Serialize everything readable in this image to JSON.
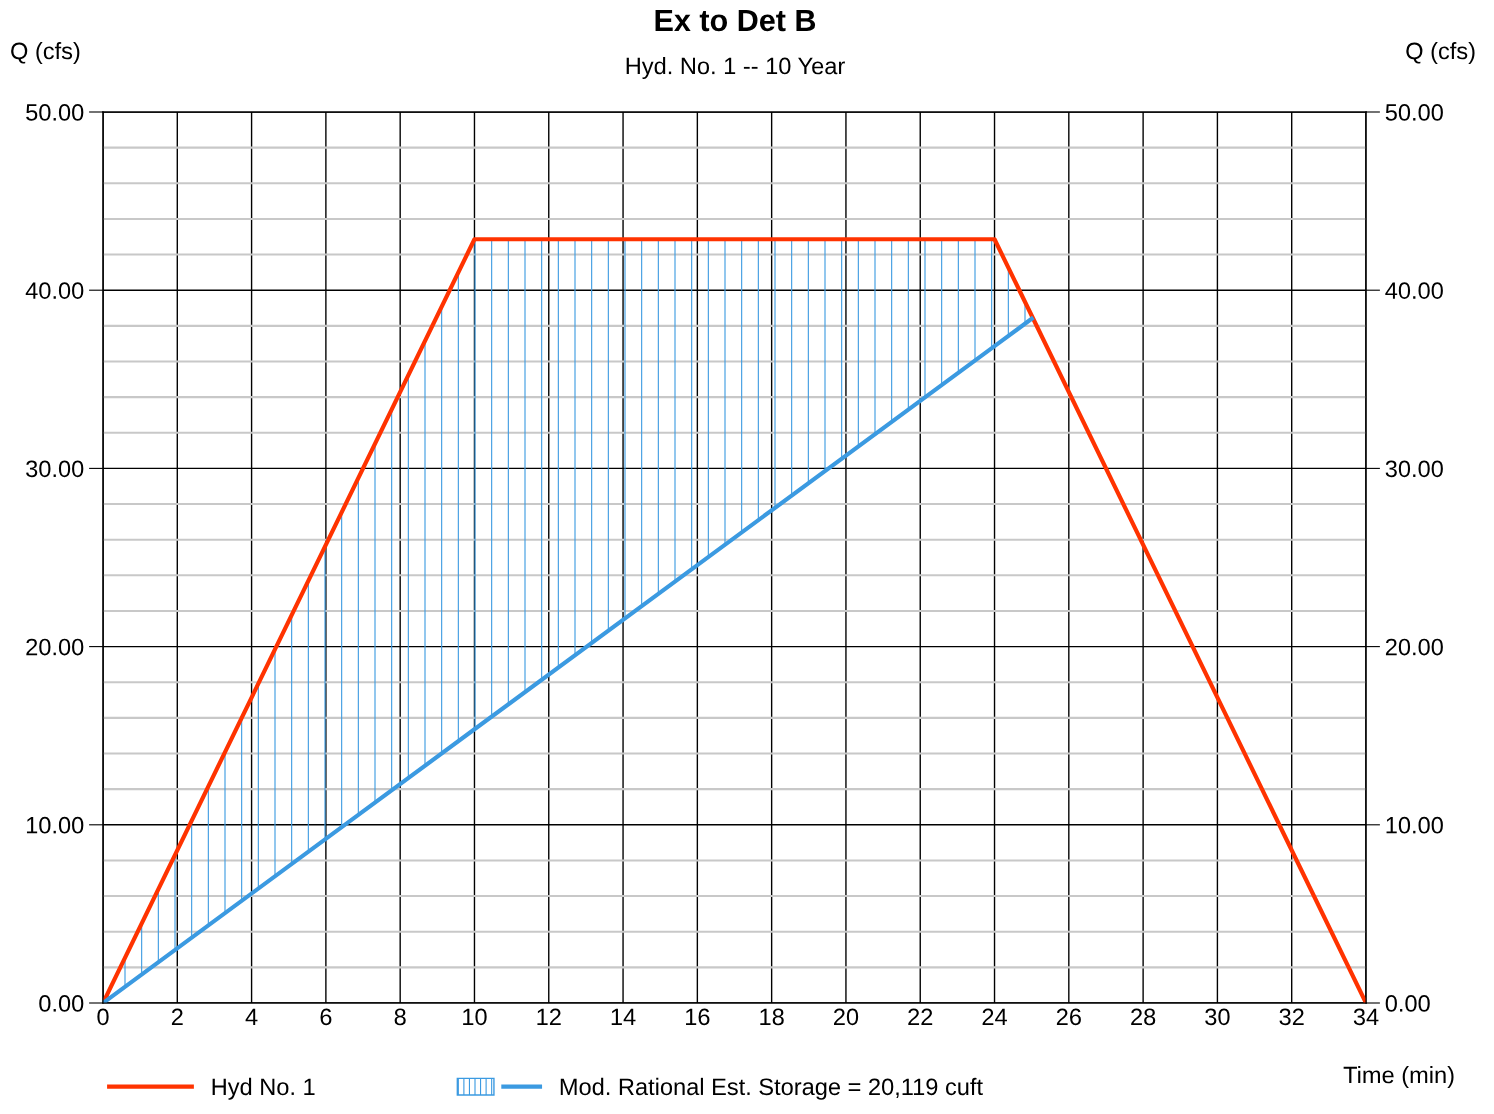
{
  "chart_data": {
    "type": "line",
    "title": "Ex to Det B",
    "subtitle": "Hyd. No. 1 -- 10 Year",
    "xlabel": "Time (min)",
    "ylabel": "Q (cfs)",
    "y2label": "Q (cfs)",
    "series": [
      {
        "name": "Hyd No. 1",
        "color": "#ff3300",
        "x": [
          0,
          10,
          24,
          34
        ],
        "values": [
          0,
          42.86,
          42.86,
          0
        ]
      },
      {
        "name": "Mod. Rational Est. Storage = 20,119 cuft",
        "color": "#3b9ae1",
        "x": [
          0,
          10,
          24,
          25
        ],
        "values": [
          0,
          15.36,
          36.86,
          38.4
        ],
        "lower": [
          0,
          15.36,
          36.86,
          38.4
        ],
        "upper": [
          0,
          42.86,
          42.86,
          38.4
        ]
      }
    ],
    "xlim": [
      0,
      34
    ],
    "xticks": [
      0,
      2,
      4,
      6,
      8,
      10,
      12,
      14,
      16,
      18,
      20,
      22,
      24,
      26,
      28,
      30,
      32,
      34
    ],
    "ylim": [
      0,
      50
    ],
    "yticks": [
      {
        "value": 0,
        "label": "0.00"
      },
      {
        "value": 2,
        "label": null
      },
      {
        "value": 4,
        "label": null
      },
      {
        "value": 6,
        "label": null
      },
      {
        "value": 8,
        "label": null
      },
      {
        "value": 10,
        "label": "10.00"
      },
      {
        "value": 12,
        "label": null
      },
      {
        "value": 14,
        "label": null
      },
      {
        "value": 16,
        "label": null
      },
      {
        "value": 18,
        "label": null
      },
      {
        "value": 20,
        "label": "20.00"
      },
      {
        "value": 22,
        "label": null
      },
      {
        "value": 24,
        "label": null
      },
      {
        "value": 26,
        "label": null
      },
      {
        "value": 28,
        "label": null
      },
      {
        "value": 30,
        "label": "30.00"
      },
      {
        "value": 32,
        "label": null
      },
      {
        "value": 34,
        "label": null
      },
      {
        "value": 36,
        "label": null
      },
      {
        "value": 38,
        "label": null
      },
      {
        "value": 40,
        "label": "40.00"
      },
      {
        "value": 42,
        "label": null
      },
      {
        "value": 44,
        "label": null
      },
      {
        "value": 46,
        "label": null
      },
      {
        "value": 48,
        "label": null
      },
      {
        "value": 50,
        "label": "50.00"
      }
    ],
    "y2lim": [
      0,
      50
    ],
    "y2ticks": [
      {
        "value": 0,
        "label": "0.00"
      },
      {
        "value": 10,
        "label": "10.00"
      },
      {
        "value": 20,
        "label": "20.00"
      },
      {
        "value": 30,
        "label": "30.00"
      },
      {
        "value": 40,
        "label": "40.00"
      },
      {
        "value": 50,
        "label": "50.00"
      }
    ],
    "grid": true,
    "legend": "bottom",
    "marker": "none",
    "line_style": "solid"
  }
}
